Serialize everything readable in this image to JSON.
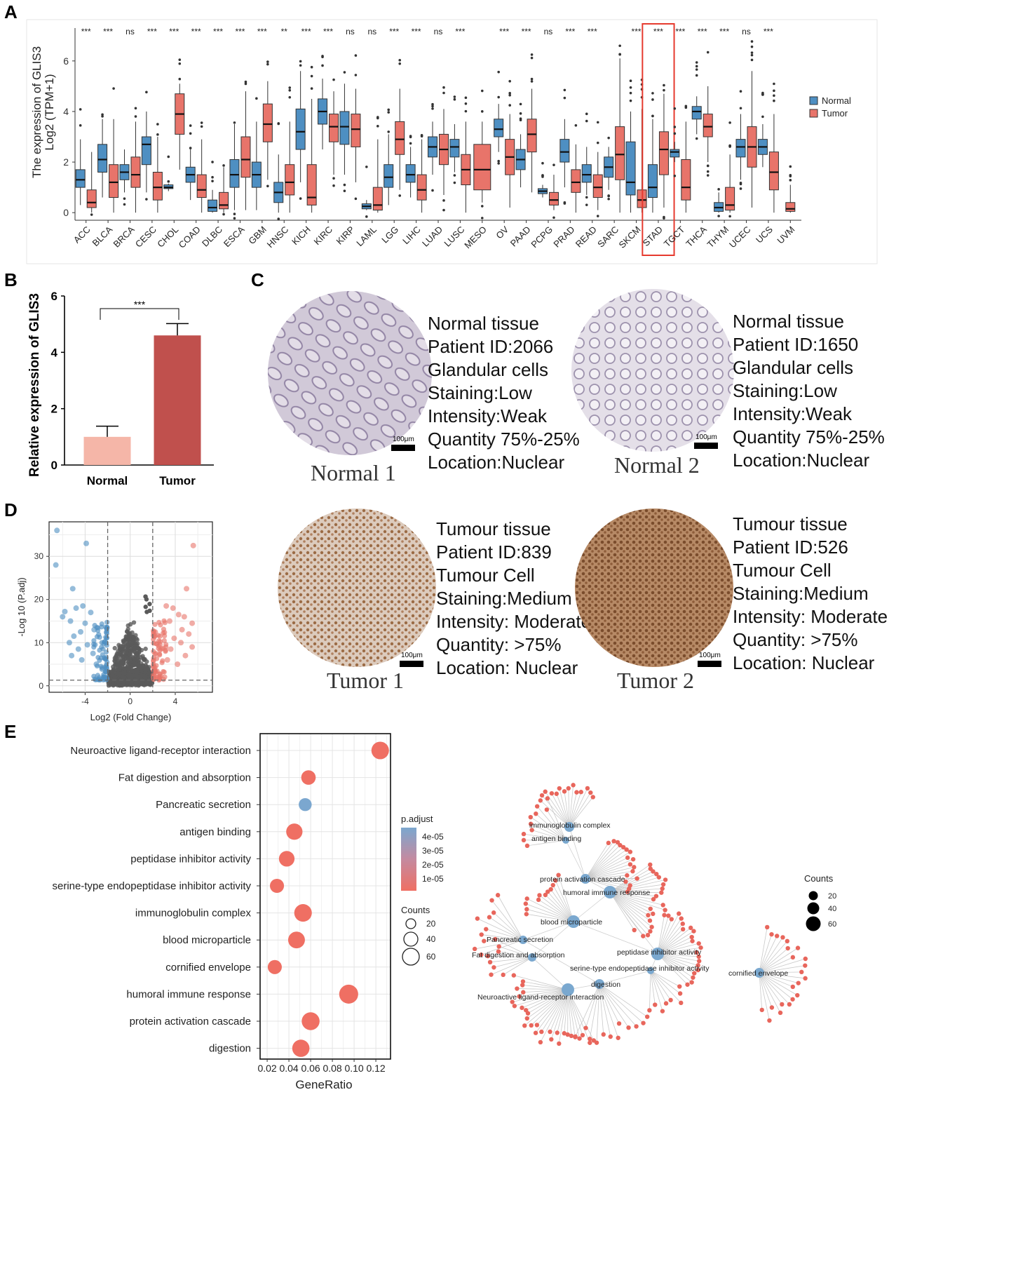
{
  "panel_labels": [
    "A",
    "B",
    "C",
    "D",
    "E"
  ],
  "colors": {
    "normal": "#4e8fc2",
    "tumor": "#e8746a",
    "normal_bar": "#f5b6a8",
    "tumor_bar": "#c0504d",
    "highlight": "#e63a2e",
    "node_blue": "#7aa8cf",
    "gene_red": "#e8665c"
  },
  "panelA": {
    "ylabel_line1": "The expression of GLIS3",
    "ylabel_line2": "Log2 (TPM+1)",
    "yticks": [
      "0",
      "2",
      "4",
      "6"
    ],
    "legend": {
      "normal": "Normal",
      "tumor": "Tumor"
    },
    "highlight_category": "STAD"
  },
  "panelB": {
    "ylabel": "Relative expression of GLIS3",
    "significance": "***"
  },
  "panelC": {
    "cards": [
      {
        "lines": [
          "Normal tissue",
          "Patient ID:2066",
          "Glandular cells",
          "Staining:Low",
          "Intensity:Weak",
          "Quantity 75%-25%",
          "Location:Nuclear"
        ],
        "caption": "Normal 1",
        "scale": "100μm"
      },
      {
        "lines": [
          "Normal tissue",
          "Patient ID:1650",
          "Glandular cells",
          "Staining:Low",
          "Intensity:Weak",
          "Quantity 75%-25%",
          "Location:Nuclear"
        ],
        "caption": "Normal 2",
        "scale": "100μm"
      },
      {
        "lines": [
          "Tumour tissue",
          "Patient ID:839",
          "Tumour Cell",
          "Staining:Medium",
          "Intensity: Moderate",
          "Quantity: >75%",
          "Location: Nuclear"
        ],
        "caption": "Tumor 1",
        "scale": "100μm"
      },
      {
        "lines": [
          "Tumour tissue",
          "Patient ID:526",
          "Tumour Cell",
          "Staining:Medium",
          "Intensity: Moderate",
          "Quantity: >75%",
          "Location: Nuclear"
        ],
        "caption": "Tumor 2",
        "scale": "100μm"
      }
    ]
  },
  "panelE": {
    "legend_title_p": "p.adjust",
    "p_ticks": [
      "4e-05",
      "3e-05",
      "2e-05",
      "1e-05"
    ],
    "legend_title_counts": "Counts",
    "count_ticks": [
      "20",
      "40",
      "60"
    ],
    "network_counts_title": "Counts",
    "network_count_ticks": [
      "20",
      "40",
      "60"
    ],
    "network_nodes": [
      "immunoglobulin complex",
      "antigen binding",
      "protein activation cascade",
      "humoral immune response",
      "blood microparticle",
      "Pancreatic secretion",
      "Fat digestion and absorption",
      "peptidase inhibitor activity",
      "serine-type endopeptidase inhibitor activity",
      "digestion",
      "Neuroactive ligand-receptor interaction",
      "cornified envelope"
    ]
  },
  "chart_data": [
    {
      "id": "A",
      "type": "boxplot",
      "title": "",
      "ylabel": "The expression of GLIS3 Log2 (TPM+1)",
      "ylim": [
        -0.3,
        7.3
      ],
      "yticks": [
        0,
        2,
        4,
        6
      ],
      "legend": [
        "Normal",
        "Tumor"
      ],
      "series_order": [
        "Normal",
        "Tumor"
      ],
      "categories": [
        {
          "name": "ACC",
          "sig": "***",
          "normal": {
            "q1": 1.0,
            "med": 1.3,
            "q3": 1.7,
            "lo": 0.3,
            "hi": 2.9
          },
          "tumor": {
            "q1": 0.2,
            "med": 0.4,
            "q3": 0.9,
            "lo": 0.0,
            "hi": 2.4
          }
        },
        {
          "name": "BLCA",
          "sig": "***",
          "normal": {
            "q1": 1.6,
            "med": 2.1,
            "q3": 2.7,
            "lo": 0.6,
            "hi": 3.7
          },
          "tumor": {
            "q1": 0.6,
            "med": 1.2,
            "q3": 1.9,
            "lo": 0.0,
            "hi": 3.7
          }
        },
        {
          "name": "BRCA",
          "sig": "ns",
          "normal": {
            "q1": 1.3,
            "med": 1.6,
            "q3": 1.9,
            "lo": 0.8,
            "hi": 2.5
          },
          "tumor": {
            "q1": 1.0,
            "med": 1.5,
            "q3": 2.2,
            "lo": 0.0,
            "hi": 3.6
          }
        },
        {
          "name": "CESC",
          "sig": "***",
          "normal": {
            "q1": 1.9,
            "med": 2.7,
            "q3": 3.0,
            "lo": 0.8,
            "hi": 4.0
          },
          "tumor": {
            "q1": 0.5,
            "med": 1.0,
            "q3": 1.6,
            "lo": 0.0,
            "hi": 3.0
          }
        },
        {
          "name": "CHOL",
          "sig": "***",
          "normal": {
            "q1": 0.95,
            "med": 1.0,
            "q3": 1.1,
            "lo": 0.85,
            "hi": 1.15
          },
          "tumor": {
            "q1": 3.1,
            "med": 3.9,
            "q3": 4.7,
            "lo": 1.7,
            "hi": 5.1
          }
        },
        {
          "name": "COAD",
          "sig": "***",
          "normal": {
            "q1": 1.2,
            "med": 1.5,
            "q3": 1.8,
            "lo": 0.5,
            "hi": 2.5
          },
          "tumor": {
            "q1": 0.6,
            "med": 0.9,
            "q3": 1.5,
            "lo": 0.0,
            "hi": 2.9
          }
        },
        {
          "name": "DLBC",
          "sig": "***",
          "normal": {
            "q1": 0.05,
            "med": 0.2,
            "q3": 0.5,
            "lo": 0.0,
            "hi": 0.9
          },
          "tumor": {
            "q1": 0.15,
            "med": 0.3,
            "q3": 0.8,
            "lo": 0.0,
            "hi": 1.8
          }
        },
        {
          "name": "ESCA",
          "sig": "***",
          "normal": {
            "q1": 1.0,
            "med": 1.5,
            "q3": 2.1,
            "lo": 0.1,
            "hi": 3.5
          },
          "tumor": {
            "q1": 1.4,
            "med": 2.1,
            "q3": 3.0,
            "lo": 0.1,
            "hi": 4.8
          }
        },
        {
          "name": "GBM",
          "sig": "***",
          "normal": {
            "q1": 1.0,
            "med": 1.5,
            "q3": 2.0,
            "lo": 0.1,
            "hi": 3.6
          },
          "tumor": {
            "q1": 2.8,
            "med": 3.5,
            "q3": 4.3,
            "lo": 1.3,
            "hi": 5.2
          }
        },
        {
          "name": "HNSC",
          "sig": "**",
          "normal": {
            "q1": 0.4,
            "med": 0.8,
            "q3": 1.2,
            "lo": 0.0,
            "hi": 2.3
          },
          "tumor": {
            "q1": 0.7,
            "med": 1.2,
            "q3": 1.9,
            "lo": 0.0,
            "hi": 3.6
          }
        },
        {
          "name": "KICH",
          "sig": "***",
          "normal": {
            "q1": 2.5,
            "med": 3.2,
            "q3": 4.1,
            "lo": 1.2,
            "hi": 5.6
          },
          "tumor": {
            "q1": 0.3,
            "med": 0.6,
            "q3": 1.9,
            "lo": 0.0,
            "hi": 4.5
          }
        },
        {
          "name": "KIRC",
          "sig": "***",
          "normal": {
            "q1": 3.5,
            "med": 4.0,
            "q3": 4.5,
            "lo": 2.5,
            "hi": 5.3
          },
          "tumor": {
            "q1": 2.8,
            "med": 3.4,
            "q3": 3.9,
            "lo": 1.5,
            "hi": 4.8
          }
        },
        {
          "name": "KIRP",
          "sig": "ns",
          "normal": {
            "q1": 2.7,
            "med": 3.4,
            "q3": 4.0,
            "lo": 1.5,
            "hi": 5.1
          },
          "tumor": {
            "q1": 2.6,
            "med": 3.3,
            "q3": 3.9,
            "lo": 1.2,
            "hi": 4.9
          }
        },
        {
          "name": "LAML",
          "sig": "ns",
          "normal": {
            "q1": 0.15,
            "med": 0.25,
            "q3": 0.35,
            "lo": 0.1,
            "hi": 0.5
          },
          "tumor": {
            "q1": 0.1,
            "med": 0.3,
            "q3": 1.0,
            "lo": 0.0,
            "hi": 2.9
          }
        },
        {
          "name": "LGG",
          "sig": "***",
          "normal": {
            "q1": 1.0,
            "med": 1.4,
            "q3": 1.9,
            "lo": 0.3,
            "hi": 3.1
          },
          "tumor": {
            "q1": 2.3,
            "med": 2.9,
            "q3": 3.6,
            "lo": 0.9,
            "hi": 4.9
          }
        },
        {
          "name": "LIHC",
          "sig": "***",
          "normal": {
            "q1": 1.2,
            "med": 1.5,
            "q3": 1.9,
            "lo": 0.6,
            "hi": 2.6
          },
          "tumor": {
            "q1": 0.5,
            "med": 0.9,
            "q3": 1.5,
            "lo": 0.0,
            "hi": 2.9
          }
        },
        {
          "name": "LUAD",
          "sig": "ns",
          "normal": {
            "q1": 2.2,
            "med": 2.6,
            "q3": 3.0,
            "lo": 1.5,
            "hi": 3.6
          },
          "tumor": {
            "q1": 1.9,
            "med": 2.5,
            "q3": 3.1,
            "lo": 0.7,
            "hi": 4.1
          }
        },
        {
          "name": "LUSC",
          "sig": "***",
          "normal": {
            "q1": 2.2,
            "med": 2.6,
            "q3": 2.9,
            "lo": 1.6,
            "hi": 3.5
          },
          "tumor": {
            "q1": 1.1,
            "med": 1.7,
            "q3": 2.3,
            "lo": 0.0,
            "hi": 3.6
          }
        },
        {
          "name": "MESO",
          "sig": "",
          "normal": null,
          "tumor": {
            "q1": 0.9,
            "med": 1.7,
            "q3": 2.7,
            "lo": 0.4,
            "hi": 3.6
          }
        },
        {
          "name": "OV",
          "sig": "***",
          "normal": {
            "q1": 3.0,
            "med": 3.3,
            "q3": 3.7,
            "lo": 2.4,
            "hi": 4.3
          },
          "tumor": {
            "q1": 1.5,
            "med": 2.2,
            "q3": 2.9,
            "lo": 0.2,
            "hi": 3.9
          }
        },
        {
          "name": "PAAD",
          "sig": "***",
          "normal": {
            "q1": 1.7,
            "med": 2.1,
            "q3": 2.5,
            "lo": 1.0,
            "hi": 3.1
          },
          "tumor": {
            "q1": 2.4,
            "med": 3.1,
            "q3": 3.7,
            "lo": 0.8,
            "hi": 4.9
          }
        },
        {
          "name": "PCPG",
          "sig": "ns",
          "normal": {
            "q1": 0.75,
            "med": 0.85,
            "q3": 0.95,
            "lo": 0.6,
            "hi": 1.1
          },
          "tumor": {
            "q1": 0.3,
            "med": 0.5,
            "q3": 0.8,
            "lo": 0.1,
            "hi": 1.5
          }
        },
        {
          "name": "PRAD",
          "sig": "***",
          "normal": {
            "q1": 2.0,
            "med": 2.4,
            "q3": 2.9,
            "lo": 1.0,
            "hi": 3.7
          },
          "tumor": {
            "q1": 0.8,
            "med": 1.2,
            "q3": 1.7,
            "lo": 0.0,
            "hi": 2.7
          }
        },
        {
          "name": "READ",
          "sig": "***",
          "normal": {
            "q1": 1.2,
            "med": 1.5,
            "q3": 1.9,
            "lo": 0.7,
            "hi": 2.6
          },
          "tumor": {
            "q1": 0.6,
            "med": 1.0,
            "q3": 1.5,
            "lo": 0.1,
            "hi": 2.4
          }
        },
        {
          "name": "SARC",
          "sig": "",
          "normal": {
            "q1": 1.4,
            "med": 1.8,
            "q3": 2.2,
            "lo": 0.9,
            "hi": 2.6
          },
          "tumor": {
            "q1": 1.3,
            "med": 2.3,
            "q3": 3.4,
            "lo": 0.0,
            "hi": 6.1
          }
        },
        {
          "name": "SKCM",
          "sig": "***",
          "normal": {
            "q1": 0.7,
            "med": 1.2,
            "q3": 2.8,
            "lo": 0.0,
            "hi": 4.0
          },
          "tumor": {
            "q1": 0.2,
            "med": 0.5,
            "q3": 0.9,
            "lo": 0.0,
            "hi": 4.1
          }
        },
        {
          "name": "STAD",
          "sig": "***",
          "normal": {
            "q1": 0.6,
            "med": 1.0,
            "q3": 1.9,
            "lo": 0.0,
            "hi": 3.7
          },
          "tumor": {
            "q1": 1.5,
            "med": 2.5,
            "q3": 3.2,
            "lo": 0.2,
            "hi": 4.7
          }
        },
        {
          "name": "TGCT",
          "sig": "***",
          "normal": {
            "q1": 2.2,
            "med": 2.4,
            "q3": 2.5,
            "lo": 2.0,
            "hi": 2.8
          },
          "tumor": {
            "q1": 0.5,
            "med": 1.0,
            "q3": 2.1,
            "lo": 0.0,
            "hi": 3.6
          }
        },
        {
          "name": "THCA",
          "sig": "***",
          "normal": {
            "q1": 3.7,
            "med": 4.0,
            "q3": 4.2,
            "lo": 3.1,
            "hi": 4.6
          },
          "tumor": {
            "q1": 3.0,
            "med": 3.4,
            "q3": 3.9,
            "lo": 2.0,
            "hi": 5.0
          }
        },
        {
          "name": "THYM",
          "sig": "***",
          "normal": {
            "q1": 0.05,
            "med": 0.2,
            "q3": 0.4,
            "lo": 0.0,
            "hi": 0.8
          },
          "tumor": {
            "q1": 0.1,
            "med": 0.3,
            "q3": 1.0,
            "lo": 0.0,
            "hi": 2.3
          }
        },
        {
          "name": "UCEC",
          "sig": "ns",
          "normal": {
            "q1": 2.2,
            "med": 2.6,
            "q3": 2.9,
            "lo": 1.3,
            "hi": 3.9
          },
          "tumor": {
            "q1": 1.8,
            "med": 2.6,
            "q3": 3.4,
            "lo": 0.2,
            "hi": 5.6
          }
        },
        {
          "name": "UCS",
          "sig": "***",
          "normal": {
            "q1": 2.3,
            "med": 2.6,
            "q3": 2.9,
            "lo": 1.8,
            "hi": 3.5
          },
          "tumor": {
            "q1": 0.9,
            "med": 1.6,
            "q3": 2.4,
            "lo": 0.0,
            "hi": 3.9
          }
        },
        {
          "name": "UVM",
          "sig": "",
          "normal": null,
          "tumor": {
            "q1": 0.05,
            "med": 0.15,
            "q3": 0.4,
            "lo": 0.0,
            "hi": 1.1
          }
        }
      ]
    },
    {
      "id": "B",
      "type": "bar",
      "title": "",
      "ylabel": "Relative expression of GLIS3",
      "categories": [
        "Normal",
        "Tumor"
      ],
      "values": [
        1.0,
        4.6
      ],
      "errors": [
        0.38,
        0.42
      ],
      "ylim": [
        0,
        6
      ],
      "yticks": [
        0,
        2,
        4,
        6
      ],
      "annotation": "***"
    },
    {
      "id": "D",
      "type": "scatter",
      "title": "",
      "xlabel": "Log2 (Fold Change)",
      "ylabel": "-Log 10 (P.adj)",
      "xticks": [
        -4,
        0,
        4
      ],
      "yticks": [
        0,
        10,
        20,
        30
      ],
      "xlim": [
        -7.2,
        7.3
      ],
      "ylim": [
        -1.5,
        38
      ],
      "thresholds": {
        "fc": [
          -2,
          2
        ],
        "padj": 1.3
      },
      "outliers_down": [
        [
          -6.5,
          36
        ],
        [
          -6.6,
          28
        ],
        [
          -3.9,
          33
        ],
        [
          -5.1,
          22.5
        ],
        [
          -6.0,
          16
        ],
        [
          -4.2,
          18.5
        ],
        [
          -5.8,
          17.2
        ],
        [
          -4.8,
          18
        ],
        [
          -5.3,
          15
        ],
        [
          -3.5,
          17
        ],
        [
          -4.0,
          14.5
        ],
        [
          -5.0,
          11.5
        ],
        [
          -5.4,
          10
        ],
        [
          -4.4,
          12.5
        ],
        [
          -3.2,
          13
        ],
        [
          -4.6,
          8.5
        ],
        [
          -3.8,
          9.5
        ],
        [
          -5.2,
          7
        ],
        [
          -4.3,
          6
        ],
        [
          -3.3,
          7.5
        ],
        [
          -3.0,
          5
        ]
      ],
      "outliers_up": [
        [
          5.6,
          32.5
        ],
        [
          5.0,
          22.5
        ],
        [
          3.2,
          18.5
        ],
        [
          3.8,
          18
        ],
        [
          4.3,
          16.5
        ],
        [
          4.8,
          16
        ],
        [
          5.5,
          14.5
        ],
        [
          3.5,
          15
        ],
        [
          4.6,
          13
        ],
        [
          5.2,
          12
        ],
        [
          3.9,
          11
        ],
        [
          4.5,
          10
        ],
        [
          5.5,
          9
        ],
        [
          3.6,
          8.5
        ],
        [
          4.9,
          7
        ],
        [
          3.3,
          6
        ],
        [
          4.2,
          5
        ]
      ]
    },
    {
      "id": "E",
      "type": "dot",
      "title": "",
      "xlabel": "GeneRatio",
      "xticks": [
        0.02,
        0.04,
        0.06,
        0.08,
        0.1,
        0.12
      ],
      "xtick_labels": [
        "0.02",
        "0.04",
        "0.06",
        "0.08",
        "0.10",
        "0.12"
      ],
      "xlim": [
        0.0135,
        0.1335
      ],
      "terms": [
        "Neuroactive ligand-receptor interaction",
        "Fat digestion and absorption",
        "Pancreatic secretion",
        "antigen binding",
        "peptidase inhibitor activity",
        "serine-type endopeptidase inhibitor activity",
        "immunoglobulin complex",
        "blood microparticle",
        "cornified envelope",
        "humoral immune response",
        "protein activation cascade",
        "digestion"
      ],
      "gene_ratio": [
        0.124,
        0.058,
        0.055,
        0.045,
        0.038,
        0.029,
        0.053,
        0.047,
        0.027,
        0.095,
        0.06,
        0.051
      ],
      "counts": [
        40,
        22,
        15,
        32,
        28,
        20,
        40,
        35,
        20,
        50,
        42,
        38
      ],
      "p_adjust": [
        1e-05,
        8e-06,
        5e-05,
        1e-05,
        1e-05,
        1e-05,
        1e-05,
        1e-05,
        1e-05,
        1e-05,
        1e-05,
        1e-05
      ]
    }
  ]
}
